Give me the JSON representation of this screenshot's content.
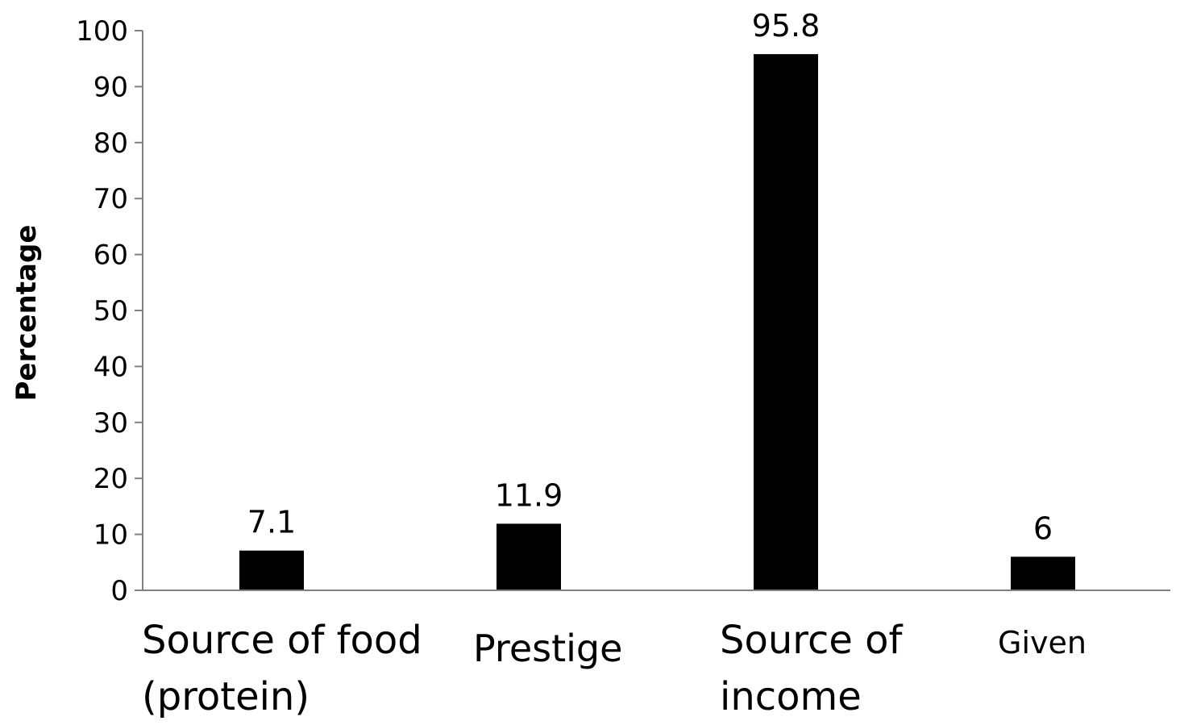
{
  "chart_data": {
    "type": "bar",
    "title": "",
    "xlabel": "",
    "ylabel": "Percentage",
    "ylim": [
      0,
      100
    ],
    "yticks": [
      0,
      10,
      20,
      30,
      40,
      50,
      60,
      70,
      80,
      90,
      100
    ],
    "grid": false,
    "categories": [
      [
        "Source of food",
        " (protein)"
      ],
      [
        "Prestige"
      ],
      [
        "Source of",
        "income"
      ],
      [
        "Given"
      ]
    ],
    "values": [
      7.1,
      11.9,
      95.8,
      6
    ],
    "data_labels": [
      "7.1",
      "11.9",
      "95.8",
      "6"
    ],
    "colors": {
      "bar": "#000000",
      "axis": "#808080",
      "text": "#000000"
    }
  }
}
